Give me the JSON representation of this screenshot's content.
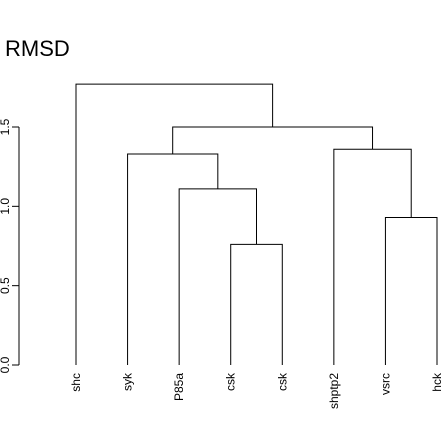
{
  "chart_data": {
    "type": "dendrogram",
    "title": "RMSD",
    "xlabel": "",
    "ylabel": "",
    "ylim": [
      0,
      1.78
    ],
    "yticks": [
      "0.0",
      "0.5",
      "1.0",
      "1.5"
    ],
    "leaves": [
      "shc",
      "syk",
      "P85a",
      "csk",
      "csk",
      "shptp2",
      "vsrc",
      "hck"
    ],
    "merges": [
      {
        "left": -4,
        "right": -5,
        "height": 0.76
      },
      {
        "left": -3,
        "right": 1,
        "height": 1.11
      },
      {
        "left": -2,
        "right": 2,
        "height": 1.33
      },
      {
        "left": -7,
        "right": -8,
        "height": 0.93
      },
      {
        "left": -6,
        "right": 4,
        "height": 1.36
      },
      {
        "left": 3,
        "right": 5,
        "height": 1.5
      },
      {
        "left": -1,
        "right": 6,
        "height": 1.77
      }
    ]
  }
}
